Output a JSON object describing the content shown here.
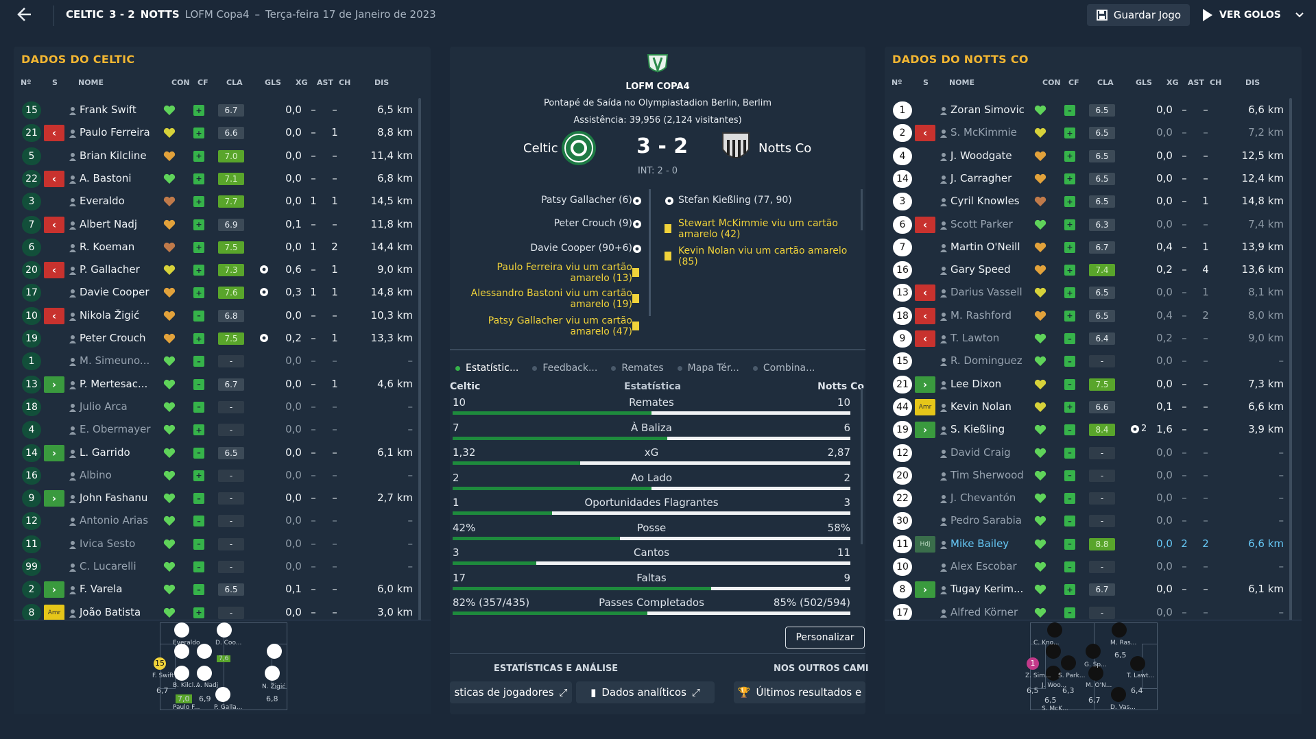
{
  "header": {
    "home_team": "CELTIC",
    "score": "3 - 2",
    "away_team": "NOTTS",
    "competition": "LOFM Copa4",
    "dash": "–",
    "date": "Terça-feira 17 de Janeiro de 2023",
    "save_label": "Guardar Jogo",
    "goals_label": "VER GOLOS"
  },
  "left_panel": {
    "title": "DADOS DO CELTIC",
    "columns": [
      "Nº",
      "S",
      "NOME",
      "CON",
      "CF",
      "CLA",
      "GLS",
      "XG",
      "AST",
      "CH",
      "DIS"
    ],
    "players": [
      {
        "num": "15",
        "sub": "",
        "name": "Frank Swift",
        "heart": "green",
        "cf": "plus",
        "cla": "6.7",
        "cla_style": "gray",
        "gls": "",
        "xg": "0,0",
        "ast": "–",
        "ch": "–",
        "dis": "6,5 km",
        "dim": false
      },
      {
        "num": "21",
        "sub": "out",
        "name": "Paulo Ferreira",
        "heart": "yellow",
        "cf": "plus",
        "cla": "6.6",
        "cla_style": "gray",
        "gls": "",
        "xg": "0,0",
        "ast": "–",
        "ch": "1",
        "dis": "8,8 km",
        "dim": false
      },
      {
        "num": "5",
        "sub": "",
        "name": "Brian Kilcline",
        "heart": "orange",
        "cf": "plus",
        "cla": "7.0",
        "cla_style": "green",
        "gls": "",
        "xg": "0,0",
        "ast": "–",
        "ch": "–",
        "dis": "11,4 km",
        "dim": false
      },
      {
        "num": "22",
        "sub": "out",
        "name": "A. Bastoni",
        "heart": "green",
        "cf": "plus",
        "cla": "7.1",
        "cla_style": "green",
        "gls": "",
        "xg": "0,0",
        "ast": "–",
        "ch": "–",
        "dis": "6,8 km",
        "dim": false
      },
      {
        "num": "3",
        "sub": "",
        "name": "Everaldo",
        "heart": "brown",
        "cf": "plus",
        "cla": "7.7",
        "cla_style": "green",
        "gls": "",
        "xg": "0,0",
        "ast": "1",
        "ch": "1",
        "dis": "14,5 km",
        "dim": false
      },
      {
        "num": "7",
        "sub": "out",
        "name": "Albert Nadj",
        "heart": "orange",
        "cf": "plus",
        "cla": "6.9",
        "cla_style": "gray",
        "gls": "",
        "xg": "0,1",
        "ast": "–",
        "ch": "–",
        "dis": "11,8 km",
        "dim": false
      },
      {
        "num": "6",
        "sub": "",
        "name": "R. Koeman",
        "heart": "brown",
        "cf": "plus",
        "cla": "7.5",
        "cla_style": "green",
        "gls": "",
        "xg": "0,0",
        "ast": "1",
        "ch": "2",
        "dis": "14,4 km",
        "dim": false
      },
      {
        "num": "20",
        "sub": "out",
        "name": "P. Gallacher",
        "heart": "yellow",
        "cf": "plus",
        "cla": "7.3",
        "cla_style": "green",
        "gls": "ball",
        "xg": "0,6",
        "ast": "–",
        "ch": "1",
        "dis": "9,0 km",
        "dim": false
      },
      {
        "num": "17",
        "sub": "",
        "name": "Davie Cooper",
        "heart": "orange",
        "cf": "plus",
        "cla": "7.6",
        "cla_style": "green",
        "gls": "ball",
        "xg": "0,3",
        "ast": "1",
        "ch": "1",
        "dis": "14,8 km",
        "dim": false
      },
      {
        "num": "10",
        "sub": "out",
        "name": "Nikola Žigić",
        "heart": "orange",
        "cf": "bar",
        "cla": "6.8",
        "cla_style": "gray",
        "gls": "",
        "xg": "0,0",
        "ast": "–",
        "ch": "–",
        "dis": "10,3 km",
        "dim": false
      },
      {
        "num": "19",
        "sub": "",
        "name": "Peter Crouch",
        "heart": "orange",
        "cf": "plus",
        "cla": "7.5",
        "cla_style": "green",
        "gls": "ball",
        "xg": "0,2",
        "ast": "–",
        "ch": "1",
        "dis": "13,3 km",
        "dim": false
      },
      {
        "num": "1",
        "sub": "",
        "name": "M. Simeuno...",
        "heart": "green",
        "cf": "bar",
        "cla": "-",
        "cla_style": "dash",
        "gls": "",
        "xg": "0,0",
        "ast": "–",
        "ch": "–",
        "dis": "–",
        "dim": true
      },
      {
        "num": "13",
        "sub": "in",
        "name": "P. Mertesac...",
        "heart": "green",
        "cf": "bar",
        "cla": "6.7",
        "cla_style": "gray",
        "gls": "",
        "xg": "0,0",
        "ast": "–",
        "ch": "1",
        "dis": "4,6 km",
        "dim": false
      },
      {
        "num": "18",
        "sub": "",
        "name": "Julio Arca",
        "heart": "green",
        "cf": "bar",
        "cla": "-",
        "cla_style": "dash",
        "gls": "",
        "xg": "0,0",
        "ast": "–",
        "ch": "–",
        "dis": "–",
        "dim": true
      },
      {
        "num": "4",
        "sub": "",
        "name": "E. Obermayer",
        "heart": "green",
        "cf": "plus",
        "cla": "-",
        "cla_style": "dash",
        "gls": "",
        "xg": "0,0",
        "ast": "–",
        "ch": "–",
        "dis": "–",
        "dim": true
      },
      {
        "num": "14",
        "sub": "in",
        "name": "L. Garrido",
        "heart": "green",
        "cf": "bar",
        "cla": "6.5",
        "cla_style": "gray",
        "gls": "",
        "xg": "0,0",
        "ast": "–",
        "ch": "–",
        "dis": "6,1 km",
        "dim": false
      },
      {
        "num": "16",
        "sub": "",
        "name": "Albino",
        "heart": "green",
        "cf": "plus",
        "cla": "-",
        "cla_style": "dash",
        "gls": "",
        "xg": "0,0",
        "ast": "–",
        "ch": "–",
        "dis": "–",
        "dim": true
      },
      {
        "num": "9",
        "sub": "in",
        "name": "John Fashanu",
        "heart": "green",
        "cf": "bar",
        "cla": "-",
        "cla_style": "dash",
        "gls": "",
        "xg": "0,0",
        "ast": "–",
        "ch": "–",
        "dis": "2,7 km",
        "dim": false
      },
      {
        "num": "12",
        "sub": "",
        "name": "Antonio Arias",
        "heart": "green",
        "cf": "bar",
        "cla": "-",
        "cla_style": "dash",
        "gls": "",
        "xg": "0,0",
        "ast": "–",
        "ch": "–",
        "dis": "–",
        "dim": true
      },
      {
        "num": "11",
        "sub": "",
        "name": "Ivica Sesto",
        "heart": "green",
        "cf": "bar",
        "cla": "-",
        "cla_style": "dash",
        "gls": "",
        "xg": "0,0",
        "ast": "–",
        "ch": "–",
        "dis": "–",
        "dim": true
      },
      {
        "num": "99",
        "sub": "",
        "name": "C. Lucarelli",
        "heart": "green",
        "cf": "bar",
        "cla": "-",
        "cla_style": "dash",
        "gls": "",
        "xg": "0,0",
        "ast": "–",
        "ch": "–",
        "dis": "–",
        "dim": true
      },
      {
        "num": "2",
        "sub": "in",
        "name": "F. Varela",
        "heart": "green",
        "cf": "bar",
        "cla": "6.5",
        "cla_style": "gray",
        "gls": "",
        "xg": "0,1",
        "ast": "–",
        "ch": "–",
        "dis": "6,0 km",
        "dim": false
      },
      {
        "num": "8",
        "sub": "amr",
        "name": "João Batista",
        "heart": "green",
        "cf": "plus",
        "cla": "-",
        "cla_style": "dash",
        "gls": "",
        "xg": "0,0",
        "ast": "–",
        "ch": "–",
        "dis": "3,0 km",
        "dim": false
      }
    ],
    "mini_pitch": {
      "labels": [
        {
          "text": "Everaldo"
        },
        {
          "text": "D. Coo..."
        },
        {
          "text": "7,6"
        },
        {
          "text": "F. Swift"
        },
        {
          "text": "6,7"
        },
        {
          "text": "B. Kilcl..."
        },
        {
          "text": "A. Nadj"
        },
        {
          "text": "7,0"
        },
        {
          "text": "6,9"
        },
        {
          "text": "Paulo F..."
        },
        {
          "text": "P. Galla..."
        },
        {
          "text": "N. Žigić"
        },
        {
          "text": "6,8"
        },
        {
          "text": "15"
        }
      ]
    }
  },
  "center": {
    "competition": "LOFM COPA4",
    "venue": "Pontapé de Saída no Olympiastadion Berlin, Berlim",
    "attendance": "Assistência: 39,956 (2,124 visitantes)",
    "home": "Celtic",
    "away": "Notts Co",
    "score": "3 - 2",
    "ht": "INT: 2 - 0",
    "home_events": [
      {
        "text": "Patsy Gallacher (6)",
        "type": "goal"
      },
      {
        "text": "Peter Crouch (9)",
        "type": "goal"
      },
      {
        "text": "Davie Cooper (90+6)",
        "type": "goal"
      },
      {
        "text": "Paulo Ferreira viu um cartão amarelo (13)",
        "type": "yellow"
      },
      {
        "text": "Alessandro Bastoni viu um cartão amarelo (19)",
        "type": "yellow"
      },
      {
        "text": "Patsy Gallacher viu um cartão amarelo (47)",
        "type": "yellow"
      }
    ],
    "away_events": [
      {
        "text": "Stefan Kießling (77, 90)",
        "type": "goal"
      },
      {
        "text": "Stewart McKimmie viu um cartão amarelo (42)",
        "type": "yellow"
      },
      {
        "text": "Kevin Nolan viu um cartão amarelo (85)",
        "type": "yellow"
      }
    ],
    "tabs": [
      "Estatístic...",
      "Feedback...",
      "Remates",
      "Mapa Tér...",
      "Combina..."
    ],
    "stats_header": {
      "home": "Celtic",
      "mid": "Estatística",
      "away": "Notts Co"
    },
    "stats": [
      {
        "label": "Remates",
        "home": "10",
        "away": "10",
        "home_share": 0.5
      },
      {
        "label": "À Baliza",
        "home": "7",
        "away": "6",
        "home_share": 0.54
      },
      {
        "label": "xG",
        "home": "1,32",
        "away": "2,87",
        "home_share": 0.32
      },
      {
        "label": "Ao Lado",
        "home": "2",
        "away": "2",
        "home_share": 0.5
      },
      {
        "label": "Oportunidades Flagrantes",
        "home": "1",
        "away": "3",
        "home_share": 0.25
      },
      {
        "label": "Posse",
        "home": "42%",
        "away": "58%",
        "home_share": 0.42
      },
      {
        "label": "Cantos",
        "home": "3",
        "away": "11",
        "home_share": 0.21
      },
      {
        "label": "Faltas",
        "home": "17",
        "away": "9",
        "home_share": 0.65
      },
      {
        "label": "Passes Completados",
        "home": "82% (357/435)",
        "away": "85% (502/594)",
        "home_share": 0.49
      }
    ],
    "customize_label": "Personalizar",
    "section_left": "ESTATÍSTICAS E ANÁLISE",
    "section_right": "NOS OUTROS CAMI",
    "link1": "sticas de jogadores",
    "link2": "Dados analíticos",
    "link3": "Últimos resultados e"
  },
  "right_panel": {
    "title": "DADOS DO NOTTS CO",
    "columns": [
      "Nº",
      "S",
      "NOME",
      "CON",
      "CF",
      "CLA",
      "GLS",
      "XG",
      "AST",
      "CH",
      "DIS"
    ],
    "players": [
      {
        "num": "1",
        "sub": "",
        "name": "Zoran Simovic",
        "heart": "green",
        "cf": "bar",
        "cla": "6.5",
        "cla_style": "gray",
        "gls": "",
        "xg": "0,0",
        "ast": "–",
        "ch": "–",
        "dis": "6,6 km",
        "dim": false
      },
      {
        "num": "2",
        "sub": "out",
        "name": "S. McKimmie",
        "heart": "yellow",
        "cf": "plus",
        "cla": "6.5",
        "cla_style": "gray",
        "gls": "",
        "xg": "0,0",
        "ast": "–",
        "ch": "–",
        "dis": "7,2 km",
        "dim": true
      },
      {
        "num": "4",
        "sub": "",
        "name": "J. Woodgate",
        "heart": "orange",
        "cf": "plus",
        "cla": "6.5",
        "cla_style": "gray",
        "gls": "",
        "xg": "0,0",
        "ast": "–",
        "ch": "–",
        "dis": "12,5 km",
        "dim": false
      },
      {
        "num": "14",
        "sub": "",
        "name": "J. Carragher",
        "heart": "orange",
        "cf": "plus",
        "cla": "6.5",
        "cla_style": "gray",
        "gls": "",
        "xg": "0,0",
        "ast": "–",
        "ch": "–",
        "dis": "12,4 km",
        "dim": false
      },
      {
        "num": "3",
        "sub": "",
        "name": "Cyril Knowles",
        "heart": "brown",
        "cf": "plus",
        "cla": "6.5",
        "cla_style": "gray",
        "gls": "",
        "xg": "0,0",
        "ast": "–",
        "ch": "1",
        "dis": "14,8 km",
        "dim": false
      },
      {
        "num": "6",
        "sub": "out",
        "name": "Scott Parker",
        "heart": "green",
        "cf": "plus",
        "cla": "6.3",
        "cla_style": "gray",
        "gls": "",
        "xg": "0,0",
        "ast": "–",
        "ch": "–",
        "dis": "7,4 km",
        "dim": true
      },
      {
        "num": "7",
        "sub": "",
        "name": "Martin O'Neill",
        "heart": "orange",
        "cf": "plus",
        "cla": "6.7",
        "cla_style": "gray",
        "gls": "",
        "xg": "0,4",
        "ast": "–",
        "ch": "1",
        "dis": "13,9 km",
        "dim": false
      },
      {
        "num": "16",
        "sub": "",
        "name": "Gary Speed",
        "heart": "orange",
        "cf": "plus",
        "cla": "7.4",
        "cla_style": "green",
        "gls": "",
        "xg": "0,2",
        "ast": "–",
        "ch": "4",
        "dis": "13,6 km",
        "dim": false
      },
      {
        "num": "13",
        "sub": "out",
        "name": "Darius Vassell",
        "heart": "yellow",
        "cf": "plus",
        "cla": "6.5",
        "cla_style": "gray",
        "gls": "",
        "xg": "0,0",
        "ast": "–",
        "ch": "1",
        "dis": "8,1 km",
        "dim": true
      },
      {
        "num": "18",
        "sub": "out",
        "name": "M. Rashford",
        "heart": "orange",
        "cf": "plus",
        "cla": "6.5",
        "cla_style": "gray",
        "gls": "",
        "xg": "0,4",
        "ast": "–",
        "ch": "2",
        "dis": "8,0 km",
        "dim": true
      },
      {
        "num": "9",
        "sub": "out",
        "name": "T. Lawton",
        "heart": "green",
        "cf": "bar",
        "cla": "6.4",
        "cla_style": "gray",
        "gls": "",
        "xg": "0,2",
        "ast": "–",
        "ch": "–",
        "dis": "9,0 km",
        "dim": true
      },
      {
        "num": "15",
        "sub": "",
        "name": "R. Dominguez",
        "heart": "green",
        "cf": "bar",
        "cla": "-",
        "cla_style": "dash",
        "gls": "",
        "xg": "0,0",
        "ast": "–",
        "ch": "–",
        "dis": "–",
        "dim": true
      },
      {
        "num": "21",
        "sub": "in",
        "name": "Lee Dixon",
        "heart": "yellow",
        "cf": "bar",
        "cla": "7.5",
        "cla_style": "green",
        "gls": "",
        "xg": "0,0",
        "ast": "–",
        "ch": "–",
        "dis": "7,3 km",
        "dim": false
      },
      {
        "num": "44",
        "sub": "amr",
        "name": "Kevin Nolan",
        "heart": "yellow",
        "cf": "plus",
        "cla": "6.6",
        "cla_style": "gray",
        "gls": "",
        "xg": "0,1",
        "ast": "–",
        "ch": "–",
        "dis": "6,6 km",
        "dim": false
      },
      {
        "num": "19",
        "sub": "in",
        "name": "S. Kießling",
        "heart": "green",
        "cf": "bar",
        "cla": "8.4",
        "cla_style": "green",
        "gls": "ball2",
        "xg": "1,6",
        "ast": "–",
        "ch": "–",
        "dis": "3,9 km",
        "dim": false
      },
      {
        "num": "12",
        "sub": "",
        "name": "David Craig",
        "heart": "green",
        "cf": "bar",
        "cla": "-",
        "cla_style": "dash",
        "gls": "",
        "xg": "0,0",
        "ast": "–",
        "ch": "–",
        "dis": "–",
        "dim": true
      },
      {
        "num": "20",
        "sub": "",
        "name": "Tim Sherwood",
        "heart": "green",
        "cf": "bar",
        "cla": "-",
        "cla_style": "dash",
        "gls": "",
        "xg": "0,0",
        "ast": "–",
        "ch": "–",
        "dis": "–",
        "dim": true
      },
      {
        "num": "22",
        "sub": "",
        "name": "J. Chevantón",
        "heart": "green",
        "cf": "bar",
        "cla": "-",
        "cla_style": "dash",
        "gls": "",
        "xg": "0,0",
        "ast": "–",
        "ch": "–",
        "dis": "–",
        "dim": true
      },
      {
        "num": "30",
        "sub": "",
        "name": "Pedro Sarabia",
        "heart": "green",
        "cf": "bar",
        "cla": "-",
        "cla_style": "dash",
        "gls": "",
        "xg": "0,0",
        "ast": "–",
        "ch": "–",
        "dis": "–",
        "dim": true
      },
      {
        "num": "11",
        "sub": "hdi",
        "name": "Mike Bailey",
        "heart": "green",
        "cf": "bar",
        "cla": "8.8",
        "cla_style": "green",
        "gls": "",
        "xg": "0,0",
        "ast": "2",
        "ch": "2",
        "dis": "6,6 km",
        "dim": false,
        "highlight": true
      },
      {
        "num": "10",
        "sub": "",
        "name": "Alex Escobar",
        "heart": "green",
        "cf": "bar",
        "cla": "-",
        "cla_style": "dash",
        "gls": "",
        "xg": "0,0",
        "ast": "–",
        "ch": "–",
        "dis": "–",
        "dim": true
      },
      {
        "num": "8",
        "sub": "in",
        "name": "Tugay Kerim...",
        "heart": "green",
        "cf": "plus",
        "cla": "6.7",
        "cla_style": "gray",
        "gls": "",
        "xg": "0,0",
        "ast": "–",
        "ch": "–",
        "dis": "6,1 km",
        "dim": false
      },
      {
        "num": "17",
        "sub": "",
        "name": "Alfred Körner",
        "heart": "green",
        "cf": "bar",
        "cla": "-",
        "cla_style": "dash",
        "gls": "",
        "xg": "0,0",
        "ast": "–",
        "ch": "–",
        "dis": "–",
        "dim": true
      }
    ],
    "gls_extra": "2",
    "mini_pitch": {
      "labels": [
        {
          "text": "C. Kno..."
        },
        {
          "text": "M. Ras..."
        },
        {
          "text": "6,5"
        },
        {
          "text": "Z. Sim..."
        },
        {
          "text": "6,5"
        },
        {
          "text": "J. Woo..."
        },
        {
          "text": "S. Park..."
        },
        {
          "text": "6,3"
        },
        {
          "text": "6,5"
        },
        {
          "text": "S. McK..."
        },
        {
          "text": "G. Sp..."
        },
        {
          "text": "M. O'N..."
        },
        {
          "text": "6,7"
        },
        {
          "text": "T. Lawt..."
        },
        {
          "text": "6,4"
        },
        {
          "text": "D. Vas..."
        },
        {
          "text": "1"
        }
      ]
    }
  },
  "colors": {
    "background": "#1b2838",
    "panel": "#1f2d3d",
    "accent": "#f2b632",
    "green": "#36b34a",
    "red": "#c8322e",
    "highlight": "#66c7f5"
  }
}
